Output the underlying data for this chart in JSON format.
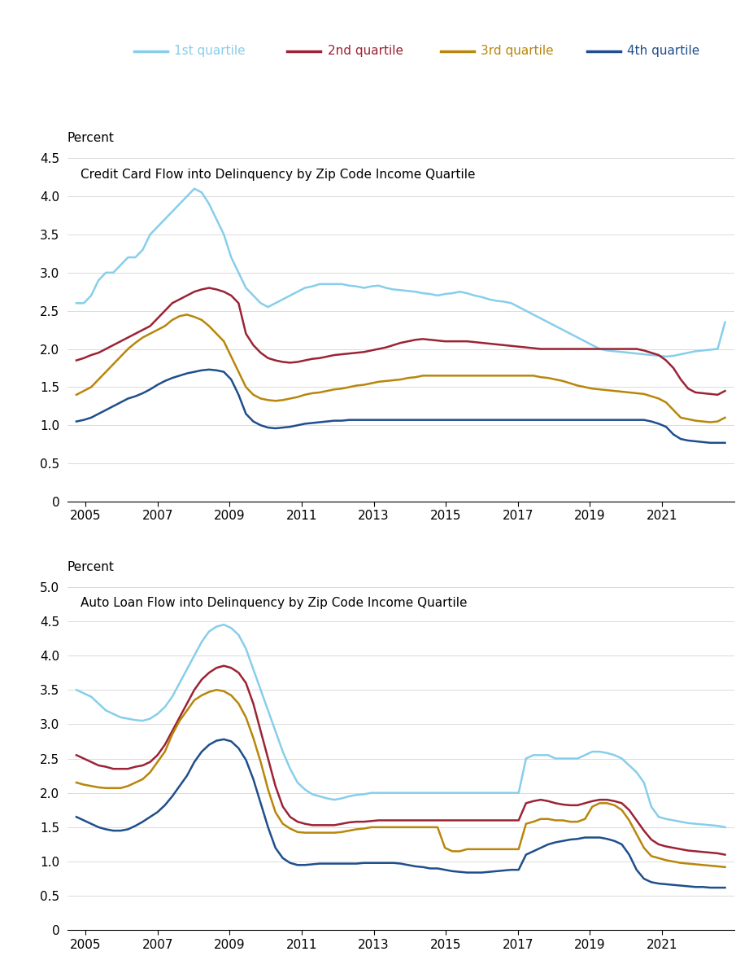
{
  "colors": {
    "q1": "#87CEEB",
    "q2": "#9B2335",
    "q3": "#B8860B",
    "q4": "#1F4E8C"
  },
  "legend_labels": [
    "1st quartile",
    "2nd quartile",
    "3rd quartile",
    "4th quartile"
  ],
  "chart1_title": "Credit Card Flow into Delinquency by Zip Code Income Quartile",
  "chart2_title": "Auto Loan Flow into Delinquency by Zip Code Income Quartile",
  "ylabel": "Percent",
  "chart1_ylim": [
    0,
    4.5
  ],
  "chart1_yticks": [
    0,
    0.5,
    1.0,
    1.5,
    2.0,
    2.5,
    3.0,
    3.5,
    4.0,
    4.5
  ],
  "chart2_ylim": [
    0,
    5.0
  ],
  "chart2_yticks": [
    0,
    0.5,
    1.0,
    1.5,
    2.0,
    2.5,
    3.0,
    3.5,
    4.0,
    4.5,
    5.0
  ],
  "xticks": [
    2005,
    2007,
    2009,
    2011,
    2013,
    2015,
    2017,
    2019,
    2021
  ],
  "xlim": [
    2004.5,
    2023.0
  ],
  "cc_q1": [
    2.6,
    2.6,
    2.7,
    2.9,
    3.0,
    3.0,
    3.1,
    3.2,
    3.2,
    3.3,
    3.5,
    3.6,
    3.7,
    3.8,
    3.9,
    4.0,
    4.1,
    4.05,
    3.9,
    3.7,
    3.5,
    3.2,
    3.0,
    2.8,
    2.7,
    2.6,
    2.55,
    2.6,
    2.65,
    2.7,
    2.75,
    2.8,
    2.82,
    2.85,
    2.85,
    2.85,
    2.85,
    2.83,
    2.82,
    2.8,
    2.82,
    2.83,
    2.8,
    2.78,
    2.77,
    2.76,
    2.75,
    2.73,
    2.72,
    2.7,
    2.72,
    2.73,
    2.75,
    2.73,
    2.7,
    2.68,
    2.65,
    2.63,
    2.62,
    2.6,
    2.55,
    2.5,
    2.45,
    2.4,
    2.35,
    2.3,
    2.25,
    2.2,
    2.15,
    2.1,
    2.05,
    2.0,
    1.98,
    1.97,
    1.96,
    1.95,
    1.94,
    1.93,
    1.92,
    1.91,
    1.9,
    1.91,
    1.93,
    1.95,
    1.97,
    1.98,
    1.99,
    2.0,
    2.35
  ],
  "cc_q2": [
    1.85,
    1.88,
    1.92,
    1.95,
    2.0,
    2.05,
    2.1,
    2.15,
    2.2,
    2.25,
    2.3,
    2.4,
    2.5,
    2.6,
    2.65,
    2.7,
    2.75,
    2.78,
    2.8,
    2.78,
    2.75,
    2.7,
    2.6,
    2.2,
    2.05,
    1.95,
    1.88,
    1.85,
    1.83,
    1.82,
    1.83,
    1.85,
    1.87,
    1.88,
    1.9,
    1.92,
    1.93,
    1.94,
    1.95,
    1.96,
    1.98,
    2.0,
    2.02,
    2.05,
    2.08,
    2.1,
    2.12,
    2.13,
    2.12,
    2.11,
    2.1,
    2.1,
    2.1,
    2.1,
    2.09,
    2.08,
    2.07,
    2.06,
    2.05,
    2.04,
    2.03,
    2.02,
    2.01,
    2.0,
    2.0,
    2.0,
    2.0,
    2.0,
    2.0,
    2.0,
    2.0,
    2.0,
    2.0,
    2.0,
    2.0,
    2.0,
    2.0,
    1.98,
    1.95,
    1.92,
    1.85,
    1.75,
    1.6,
    1.48,
    1.43,
    1.42,
    1.41,
    1.4,
    1.45
  ],
  "cc_q3": [
    1.4,
    1.45,
    1.5,
    1.6,
    1.7,
    1.8,
    1.9,
    2.0,
    2.08,
    2.15,
    2.2,
    2.25,
    2.3,
    2.38,
    2.43,
    2.45,
    2.42,
    2.38,
    2.3,
    2.2,
    2.1,
    1.9,
    1.7,
    1.5,
    1.4,
    1.35,
    1.33,
    1.32,
    1.33,
    1.35,
    1.37,
    1.4,
    1.42,
    1.43,
    1.45,
    1.47,
    1.48,
    1.5,
    1.52,
    1.53,
    1.55,
    1.57,
    1.58,
    1.59,
    1.6,
    1.62,
    1.63,
    1.65,
    1.65,
    1.65,
    1.65,
    1.65,
    1.65,
    1.65,
    1.65,
    1.65,
    1.65,
    1.65,
    1.65,
    1.65,
    1.65,
    1.65,
    1.65,
    1.63,
    1.62,
    1.6,
    1.58,
    1.55,
    1.52,
    1.5,
    1.48,
    1.47,
    1.46,
    1.45,
    1.44,
    1.43,
    1.42,
    1.41,
    1.38,
    1.35,
    1.3,
    1.2,
    1.1,
    1.08,
    1.06,
    1.05,
    1.04,
    1.05,
    1.1
  ],
  "cc_q4": [
    1.05,
    1.07,
    1.1,
    1.15,
    1.2,
    1.25,
    1.3,
    1.35,
    1.38,
    1.42,
    1.47,
    1.53,
    1.58,
    1.62,
    1.65,
    1.68,
    1.7,
    1.72,
    1.73,
    1.72,
    1.7,
    1.6,
    1.4,
    1.15,
    1.05,
    1.0,
    0.97,
    0.96,
    0.97,
    0.98,
    1.0,
    1.02,
    1.03,
    1.04,
    1.05,
    1.06,
    1.06,
    1.07,
    1.07,
    1.07,
    1.07,
    1.07,
    1.07,
    1.07,
    1.07,
    1.07,
    1.07,
    1.07,
    1.07,
    1.07,
    1.07,
    1.07,
    1.07,
    1.07,
    1.07,
    1.07,
    1.07,
    1.07,
    1.07,
    1.07,
    1.07,
    1.07,
    1.07,
    1.07,
    1.07,
    1.07,
    1.07,
    1.07,
    1.07,
    1.07,
    1.07,
    1.07,
    1.07,
    1.07,
    1.07,
    1.07,
    1.07,
    1.07,
    1.05,
    1.02,
    0.98,
    0.88,
    0.82,
    0.8,
    0.79,
    0.78,
    0.77,
    0.77,
    0.77
  ],
  "al_q1": [
    3.5,
    3.45,
    3.4,
    3.3,
    3.2,
    3.15,
    3.1,
    3.08,
    3.06,
    3.05,
    3.08,
    3.15,
    3.25,
    3.4,
    3.6,
    3.8,
    4.0,
    4.2,
    4.35,
    4.42,
    4.45,
    4.4,
    4.3,
    4.1,
    3.8,
    3.5,
    3.2,
    2.9,
    2.6,
    2.35,
    2.15,
    2.05,
    1.98,
    1.95,
    1.92,
    1.9,
    1.92,
    1.95,
    1.97,
    1.98,
    2.0,
    2.0,
    2.0,
    2.0,
    2.0,
    2.0,
    2.0,
    2.0,
    2.0,
    2.0,
    2.0,
    2.0,
    2.0,
    2.0,
    2.0,
    2.0,
    2.0,
    2.0,
    2.0,
    2.0,
    2.0,
    2.5,
    2.55,
    2.55,
    2.55,
    2.5,
    2.5,
    2.5,
    2.5,
    2.55,
    2.6,
    2.6,
    2.58,
    2.55,
    2.5,
    2.4,
    2.3,
    2.15,
    1.8,
    1.65,
    1.62,
    1.6,
    1.58,
    1.56,
    1.55,
    1.54,
    1.53,
    1.52,
    1.5
  ],
  "al_q2": [
    2.55,
    2.5,
    2.45,
    2.4,
    2.38,
    2.35,
    2.35,
    2.35,
    2.38,
    2.4,
    2.45,
    2.55,
    2.7,
    2.9,
    3.1,
    3.3,
    3.5,
    3.65,
    3.75,
    3.82,
    3.85,
    3.82,
    3.75,
    3.6,
    3.3,
    2.9,
    2.5,
    2.1,
    1.8,
    1.65,
    1.58,
    1.55,
    1.53,
    1.53,
    1.53,
    1.53,
    1.55,
    1.57,
    1.58,
    1.58,
    1.59,
    1.6,
    1.6,
    1.6,
    1.6,
    1.6,
    1.6,
    1.6,
    1.6,
    1.6,
    1.6,
    1.6,
    1.6,
    1.6,
    1.6,
    1.6,
    1.6,
    1.6,
    1.6,
    1.6,
    1.6,
    1.85,
    1.88,
    1.9,
    1.88,
    1.85,
    1.83,
    1.82,
    1.82,
    1.85,
    1.88,
    1.9,
    1.9,
    1.88,
    1.85,
    1.75,
    1.6,
    1.45,
    1.32,
    1.25,
    1.22,
    1.2,
    1.18,
    1.16,
    1.15,
    1.14,
    1.13,
    1.12,
    1.1
  ],
  "al_q3": [
    2.15,
    2.12,
    2.1,
    2.08,
    2.07,
    2.07,
    2.07,
    2.1,
    2.15,
    2.2,
    2.3,
    2.45,
    2.6,
    2.85,
    3.05,
    3.2,
    3.35,
    3.42,
    3.47,
    3.5,
    3.48,
    3.42,
    3.3,
    3.1,
    2.8,
    2.45,
    2.05,
    1.72,
    1.55,
    1.48,
    1.43,
    1.42,
    1.42,
    1.42,
    1.42,
    1.42,
    1.43,
    1.45,
    1.47,
    1.48,
    1.5,
    1.5,
    1.5,
    1.5,
    1.5,
    1.5,
    1.5,
    1.5,
    1.5,
    1.5,
    1.2,
    1.15,
    1.15,
    1.18,
    1.18,
    1.18,
    1.18,
    1.18,
    1.18,
    1.18,
    1.18,
    1.55,
    1.58,
    1.62,
    1.62,
    1.6,
    1.6,
    1.58,
    1.58,
    1.62,
    1.8,
    1.85,
    1.85,
    1.82,
    1.75,
    1.6,
    1.4,
    1.2,
    1.08,
    1.05,
    1.02,
    1.0,
    0.98,
    0.97,
    0.96,
    0.95,
    0.94,
    0.93,
    0.92
  ],
  "al_q4": [
    1.65,
    1.6,
    1.55,
    1.5,
    1.47,
    1.45,
    1.45,
    1.47,
    1.52,
    1.58,
    1.65,
    1.72,
    1.82,
    1.95,
    2.1,
    2.25,
    2.45,
    2.6,
    2.7,
    2.76,
    2.78,
    2.75,
    2.65,
    2.48,
    2.2,
    1.85,
    1.5,
    1.2,
    1.05,
    0.98,
    0.95,
    0.95,
    0.96,
    0.97,
    0.97,
    0.97,
    0.97,
    0.97,
    0.97,
    0.98,
    0.98,
    0.98,
    0.98,
    0.98,
    0.97,
    0.95,
    0.93,
    0.92,
    0.9,
    0.9,
    0.88,
    0.86,
    0.85,
    0.84,
    0.84,
    0.84,
    0.85,
    0.86,
    0.87,
    0.88,
    0.88,
    1.1,
    1.15,
    1.2,
    1.25,
    1.28,
    1.3,
    1.32,
    1.33,
    1.35,
    1.35,
    1.35,
    1.33,
    1.3,
    1.25,
    1.1,
    0.88,
    0.75,
    0.7,
    0.68,
    0.67,
    0.66,
    0.65,
    0.64,
    0.63,
    0.63,
    0.62,
    0.62,
    0.62
  ]
}
